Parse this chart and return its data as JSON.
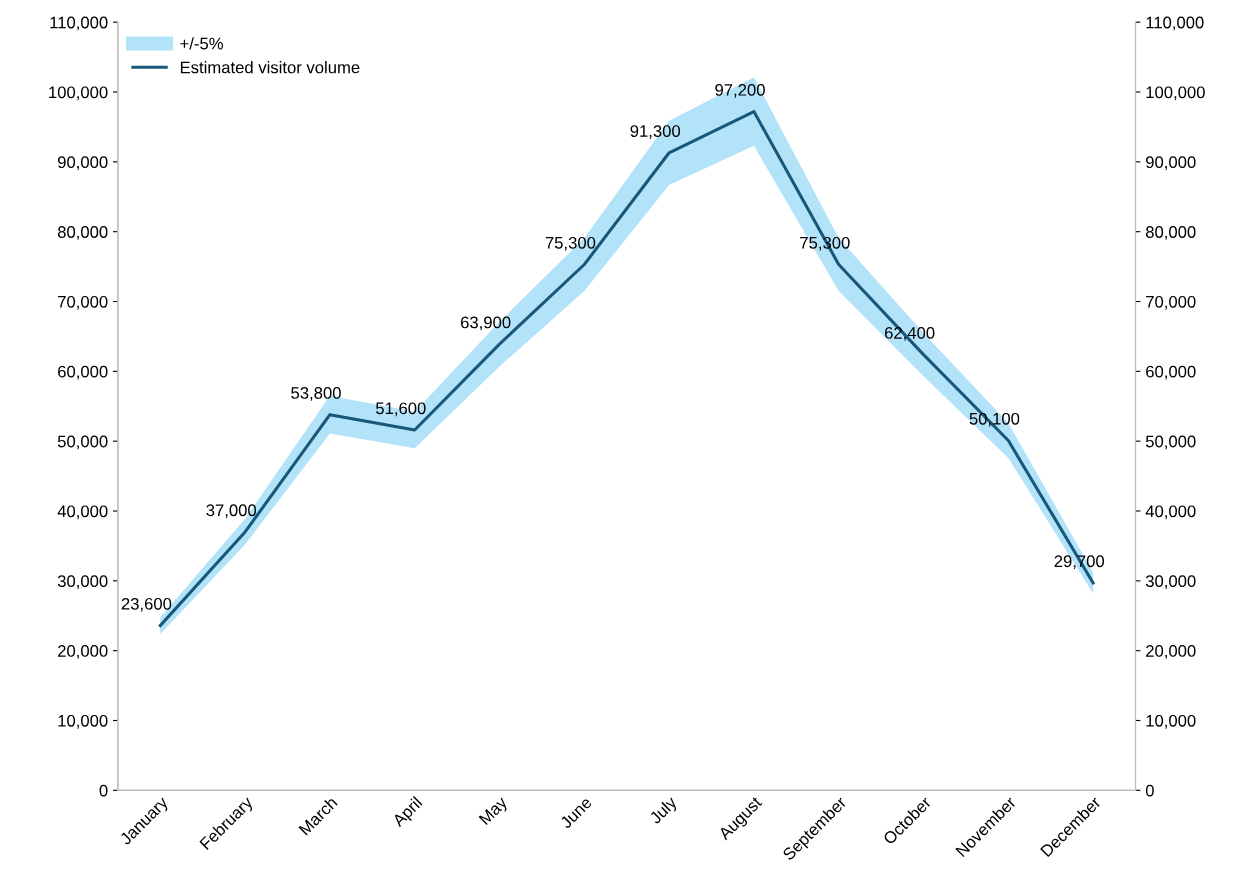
{
  "chart_data": {
    "type": "line",
    "categories": [
      "January",
      "February",
      "March",
      "April",
      "May",
      "June",
      "July",
      "August",
      "September",
      "October",
      "November",
      "December"
    ],
    "series": [
      {
        "name": "Estimated visitor volume",
        "color": "#17587a",
        "values": [
          23600,
          37000,
          53800,
          51600,
          63900,
          75300,
          91300,
          97200,
          75300,
          62400,
          50100,
          29700
        ],
        "value_labels": [
          "23,600",
          "37,000",
          "53,800",
          "51,600",
          "63,900",
          "75,300",
          "91,300",
          "97,200",
          "75,300",
          "62,400",
          "50,100",
          "29,700"
        ],
        "lower": [
          22400,
          35200,
          51100,
          49000,
          60700,
          71500,
          86700,
          92300,
          71500,
          59300,
          47600,
          28200
        ],
        "upper": [
          24800,
          38900,
          56500,
          54200,
          67100,
          79100,
          95900,
          102100,
          79100,
          65500,
          52600,
          31200
        ]
      }
    ],
    "annotations": [
      "+/-5%"
    ],
    "colors": [
      "#b3e3f9"
    ],
    "grid": false,
    "ylim": [
      0,
      110000
    ],
    "yticks": [
      0,
      {
        "value": 10000,
        "label": "10,000"
      },
      {
        "value": 20000,
        "label": "20,000"
      },
      {
        "value": 30000,
        "label": "30,000"
      },
      {
        "value": 40000,
        "label": "40,000"
      },
      {
        "value": 50000,
        "label": "50,000"
      },
      {
        "value": 60000,
        "label": "60,000"
      },
      {
        "value": 70000,
        "label": "70,000"
      },
      {
        "value": 80000,
        "label": "80,000"
      },
      {
        "value": 90000,
        "label": "90,000"
      },
      {
        "value": 100000,
        "label": "100,000"
      },
      {
        "value": 110000,
        "label": "110,000"
      }
    ],
    "y2lim": [
      0,
      110000
    ],
    "y2ticks": [
      0,
      {
        "value": 10000,
        "label": "10,000"
      },
      {
        "value": 20000,
        "label": "20,000"
      },
      {
        "value": 30000,
        "label": "30,000"
      },
      {
        "value": 40000,
        "label": "40,000"
      },
      {
        "value": 50000,
        "label": "50,000"
      },
      {
        "value": 60000,
        "label": "60,000"
      },
      {
        "value": 70000,
        "label": "70,000"
      },
      {
        "value": 80000,
        "label": "80,000"
      },
      {
        "value": 90000,
        "label": "90,000"
      },
      {
        "value": 100000,
        "label": "100,000"
      },
      {
        "value": 110000,
        "label": "110,000"
      }
    ],
    "legend": "top left",
    "marker": "none",
    "line_style": "solid"
  }
}
